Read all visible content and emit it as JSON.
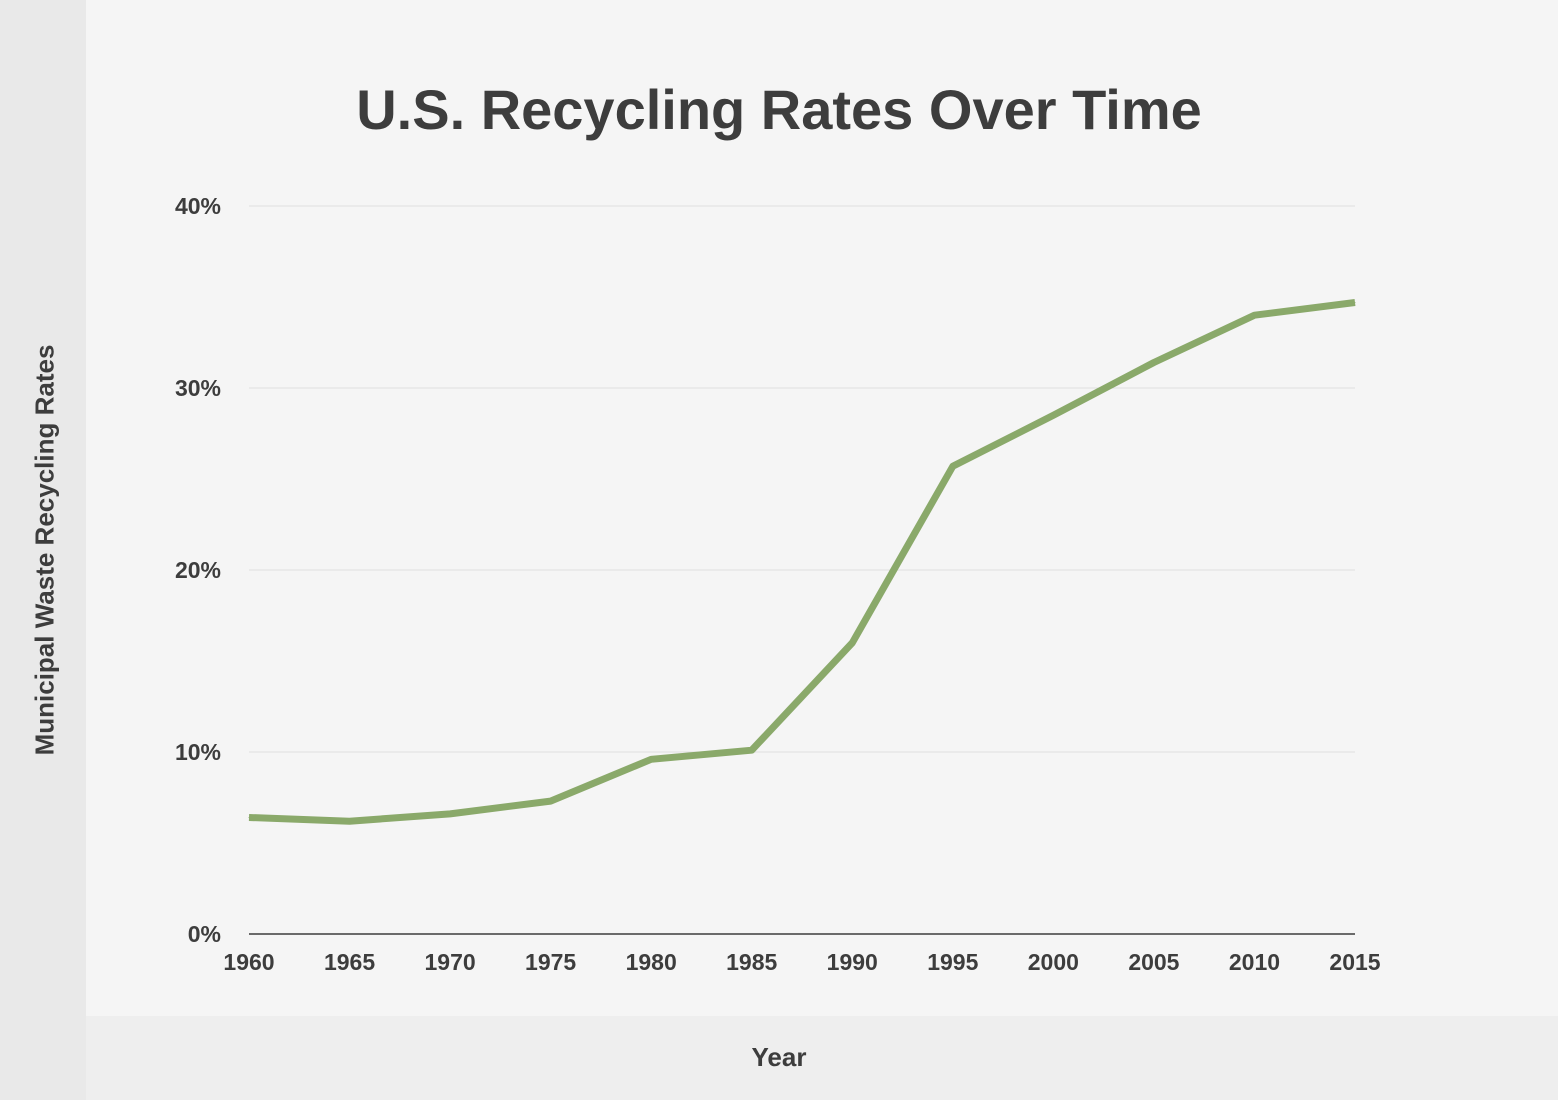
{
  "chart_data": {
    "type": "line",
    "title": "U.S. Recycling Rates Over Time",
    "xlabel": "Year",
    "ylabel": "Municipal Waste Recycling Rates",
    "x": [
      "1960",
      "1965",
      "1970",
      "1975",
      "1980",
      "1985",
      "1990",
      "1995",
      "2000",
      "2005",
      "2010",
      "2015"
    ],
    "series": [
      {
        "values": [
          6.4,
          6.2,
          6.6,
          7.3,
          9.6,
          10.1,
          16.0,
          25.7,
          28.5,
          31.4,
          34.0,
          34.7
        ]
      }
    ],
    "ylim": [
      0,
      40
    ],
    "yticks": [
      0,
      10,
      20,
      30,
      40
    ],
    "ytick_labels": [
      "0%",
      "10%",
      "20%",
      "30%",
      "40%"
    ],
    "grid": true,
    "line_color": "#8aa96a",
    "text_color": "#3d3d3d"
  }
}
